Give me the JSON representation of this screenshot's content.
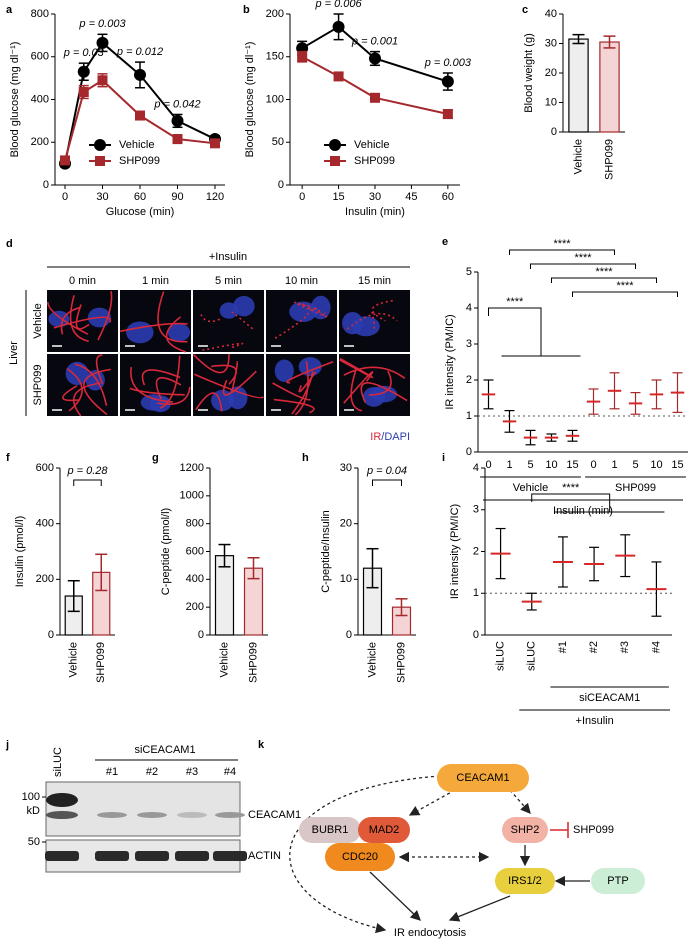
{
  "chart_data": [
    {
      "type": "line",
      "panel": "a",
      "ylabel": "Blood glucose (mg dl⁻¹)",
      "xlabel": "Glucose (min)",
      "x": [
        0,
        15,
        30,
        60,
        90,
        120
      ],
      "xlim": [
        -8,
        128
      ],
      "xticks": [
        0,
        30,
        60,
        90,
        120
      ],
      "ylim": [
        0,
        800
      ],
      "yticks": [
        0,
        200,
        400,
        600,
        800
      ],
      "legend": "lower center",
      "series": [
        {
          "name": "Vehicle",
          "color": "#000000",
          "marker": "circle",
          "values": [
            100,
            530,
            665,
            515,
            300,
            215
          ],
          "errors": [
            15,
            40,
            40,
            60,
            30,
            15
          ]
        },
        {
          "name": "SHP099",
          "color": "#a5282c",
          "marker": "square",
          "values": [
            115,
            435,
            490,
            325,
            215,
            195
          ],
          "errors": [
            12,
            30,
            30,
            15,
            20,
            15
          ]
        }
      ],
      "annotations": [
        {
          "text": "p = 0.03",
          "x": 15
        },
        {
          "text": "p = 0.003",
          "x": 30
        },
        {
          "text": "p = 0.012",
          "x": 60
        },
        {
          "text": "p = 0.042",
          "x": 90
        }
      ]
    },
    {
      "type": "line",
      "panel": "b",
      "ylabel": "Blood glucose (mg dl⁻¹)",
      "xlabel": "Insulin (min)",
      "x": [
        0,
        15,
        30,
        60
      ],
      "xlim": [
        -5,
        65
      ],
      "xticks": [
        0,
        15,
        30,
        45,
        60
      ],
      "ylim": [
        0,
        200
      ],
      "yticks": [
        0,
        50,
        100,
        150,
        200
      ],
      "legend": "lower center",
      "series": [
        {
          "name": "Vehicle",
          "color": "#000000",
          "marker": "circle",
          "values": [
            160,
            185,
            148,
            121
          ],
          "errors": [
            8,
            15,
            8,
            10
          ]
        },
        {
          "name": "SHP099",
          "color": "#a5282c",
          "marker": "square",
          "values": [
            150,
            127,
            102,
            83
          ],
          "errors": [
            6,
            4,
            4,
            5
          ]
        }
      ],
      "annotations": [
        {
          "text": "p = 0.006",
          "x": 15
        },
        {
          "text": "p = 0.001",
          "x": 30
        },
        {
          "text": "p = 0.003",
          "x": 60
        }
      ]
    },
    {
      "type": "bar",
      "panel": "c",
      "ylabel": "Blood weight (g)",
      "categories": [
        "Vehicle",
        "SHP099"
      ],
      "values": [
        31.5,
        30.5
      ],
      "errors": [
        1.5,
        2
      ],
      "colors": [
        "#eeeeee",
        "#f4d4d4"
      ],
      "edge_colors": [
        "#000000",
        "#a5282c"
      ],
      "ylim": [
        0,
        40
      ],
      "yticks": [
        0,
        10,
        20,
        30,
        40
      ]
    },
    {
      "type": "dot",
      "panel": "e",
      "ylabel": "IR intensity (PM/IC)",
      "xlabel": "Insulin (min)",
      "ylim": [
        0,
        5
      ],
      "yticks": [
        0,
        1,
        2,
        3,
        4,
        5
      ],
      "refline": 1,
      "mean_color": "#d62728",
      "groups": [
        {
          "name": "Vehicle",
          "color": "#000000",
          "categories": [
            "0",
            "1",
            "5",
            "10",
            "15"
          ],
          "values": [
            1.6,
            0.85,
            0.4,
            0.4,
            0.45
          ],
          "errors": [
            0.4,
            0.3,
            0.2,
            0.1,
            0.15
          ]
        },
        {
          "name": "SHP099",
          "color": "#a5282c",
          "categories": [
            "0",
            "1",
            "5",
            "10",
            "15"
          ],
          "values": [
            1.4,
            1.7,
            1.35,
            1.6,
            1.65
          ],
          "errors": [
            0.35,
            0.5,
            0.3,
            0.4,
            0.55
          ]
        }
      ],
      "significance": [
        "****",
        "****",
        "****",
        "****",
        "****"
      ]
    },
    {
      "type": "bar",
      "panel": "f",
      "ylabel": "Insulin (pmol/l)",
      "categories": [
        "Vehicle",
        "SHP099"
      ],
      "values": [
        140,
        225
      ],
      "errors": [
        55,
        65
      ],
      "colors": [
        "#eeeeee",
        "#f4d4d4"
      ],
      "edge_colors": [
        "#000000",
        "#a5282c"
      ],
      "ylim": [
        0,
        600
      ],
      "yticks": [
        0,
        200,
        400,
        600
      ],
      "annotation": "p = 0.28"
    },
    {
      "type": "bar",
      "panel": "g",
      "ylabel": "C-peptide (pmol/l)",
      "categories": [
        "Vehicle",
        "SHP099"
      ],
      "values": [
        570,
        480
      ],
      "errors": [
        80,
        75
      ],
      "colors": [
        "#eeeeee",
        "#f4d4d4"
      ],
      "edge_colors": [
        "#000000",
        "#a5282c"
      ],
      "ylim": [
        0,
        1200
      ],
      "yticks": [
        0,
        200,
        400,
        600,
        800,
        1000,
        1200
      ]
    },
    {
      "type": "bar",
      "panel": "h",
      "ylabel": "C-peptide/Insulin",
      "categories": [
        "Vehicle",
        "SHP099"
      ],
      "values": [
        12,
        5
      ],
      "errors": [
        3.5,
        1.5
      ],
      "colors": [
        "#eeeeee",
        "#f4d4d4"
      ],
      "edge_colors": [
        "#000000",
        "#a5282c"
      ],
      "ylim": [
        0,
        30
      ],
      "yticks": [
        0,
        10,
        20,
        30
      ],
      "annotation": "p = 0.04"
    },
    {
      "type": "dot",
      "panel": "i",
      "ylabel": "IR intensity (PM/IC)",
      "xlabel": "+Insulin",
      "ylim": [
        0,
        4
      ],
      "yticks": [
        0,
        1,
        2,
        3,
        4
      ],
      "refline": 1,
      "mean_color": "#d62728",
      "groups": [
        {
          "color": "#000000",
          "categories": [
            "siLUC"
          ],
          "values": [
            1.95
          ],
          "errors": [
            0.6
          ]
        },
        {
          "color": "#000000",
          "categories": [
            "siLUC"
          ],
          "values": [
            0.8
          ],
          "errors": [
            0.2
          ]
        },
        {
          "name": "siCEACAM1",
          "color": "#000000",
          "categories": [
            "#1",
            "#2",
            "#3",
            "#4"
          ],
          "values": [
            1.75,
            1.7,
            1.9,
            1.1
          ],
          "errors": [
            0.6,
            0.4,
            0.5,
            0.65
          ]
        }
      ],
      "significance": [
        "****"
      ]
    }
  ],
  "micrograph": {
    "panel": "d",
    "treatment": "+Insulin",
    "times": [
      "0 min",
      "1 min",
      "5 min",
      "10 min",
      "15 min"
    ],
    "rows": [
      "Vehicle",
      "SHP099"
    ],
    "tissue": "Liver",
    "stain": [
      "IR",
      "/DAPI"
    ]
  },
  "blot": {
    "panel": "j",
    "control": "siLUC",
    "group": "siCEACAM1",
    "lanes": [
      "#1",
      "#2",
      "#3",
      "#4"
    ],
    "markers": [
      "100",
      "kD",
      "50"
    ],
    "bands": [
      "CEACAM1",
      "ACTIN"
    ]
  },
  "diagram": {
    "panel": "k",
    "nodes": [
      "CEACAM1",
      "BUBR1",
      "MAD2",
      "CDC20",
      "SHP2",
      "SHP099",
      "IRS1/2",
      "PTP",
      "IR endocytosis"
    ]
  }
}
